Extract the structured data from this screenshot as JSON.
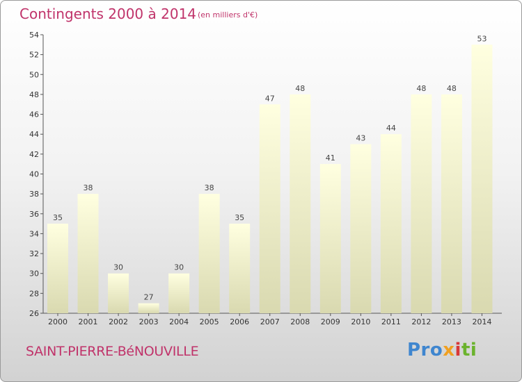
{
  "header": {
    "title": "Contingents 2000 à 2014",
    "subtitle": "(en milliers d'€)"
  },
  "footer": {
    "place": "SAINT-PIERRE-BéNOUVILLE",
    "logo_parts": [
      "Pro",
      "x",
      "i",
      "ti"
    ]
  },
  "colors": {
    "title": "#c0336a",
    "bar_top": "#ffffe0",
    "bar_bottom": "#d9d9b0"
  },
  "chart_data": {
    "type": "bar",
    "title": "Contingents 2000 à 2014",
    "subtitle": "(en milliers d'€)",
    "categories": [
      "2000",
      "2001",
      "2002",
      "2003",
      "2004",
      "2005",
      "2006",
      "2007",
      "2008",
      "2009",
      "2010",
      "2011",
      "2012",
      "2013",
      "2014"
    ],
    "values": [
      35,
      38,
      30,
      27,
      30,
      38,
      35,
      47,
      48,
      41,
      43,
      44,
      48,
      48,
      53
    ],
    "ylim": [
      26,
      54
    ],
    "yticks": [
      26,
      28,
      30,
      32,
      34,
      36,
      38,
      40,
      42,
      44,
      46,
      48,
      50,
      52,
      54
    ],
    "grid": false,
    "xlabel": "",
    "ylabel": ""
  }
}
